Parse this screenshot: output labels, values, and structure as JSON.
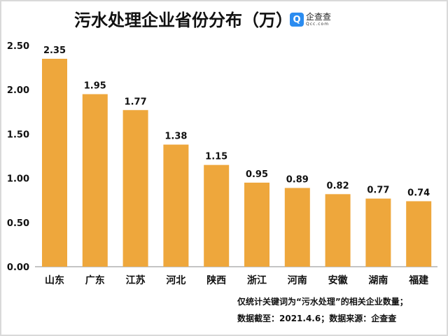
{
  "title": "污水处理企业省份分布（万）",
  "logo": {
    "icon": "qcc-logo-icon",
    "name_cn": "企查查",
    "name_en": "Qcc.com",
    "color": "#2b8cf0"
  },
  "notes": [
    "仅统计关键词为“污水处理”的相关企业数量；",
    "数据截至：2021.4.6；数据来源：企查查"
  ],
  "chart_data": {
    "type": "bar",
    "title": "污水处理企业省份分布（万）",
    "categories": [
      "山东",
      "广东",
      "江苏",
      "河北",
      "陕西",
      "浙江",
      "河南",
      "安徽",
      "湖南",
      "福建"
    ],
    "values": [
      2.35,
      1.95,
      1.77,
      1.38,
      1.15,
      0.95,
      0.89,
      0.82,
      0.77,
      0.74
    ],
    "value_labels": [
      "2.35",
      "1.95",
      "1.77",
      "1.38",
      "1.15",
      "0.95",
      "0.89",
      "0.82",
      "0.77",
      "0.74"
    ],
    "yticks": [
      "0.00",
      "0.50",
      "1.00",
      "1.50",
      "2.00",
      "2.50"
    ],
    "ylim": [
      0,
      2.5
    ],
    "grid": false,
    "bar_color": "#eea73c",
    "xlabel": "",
    "ylabel": ""
  }
}
